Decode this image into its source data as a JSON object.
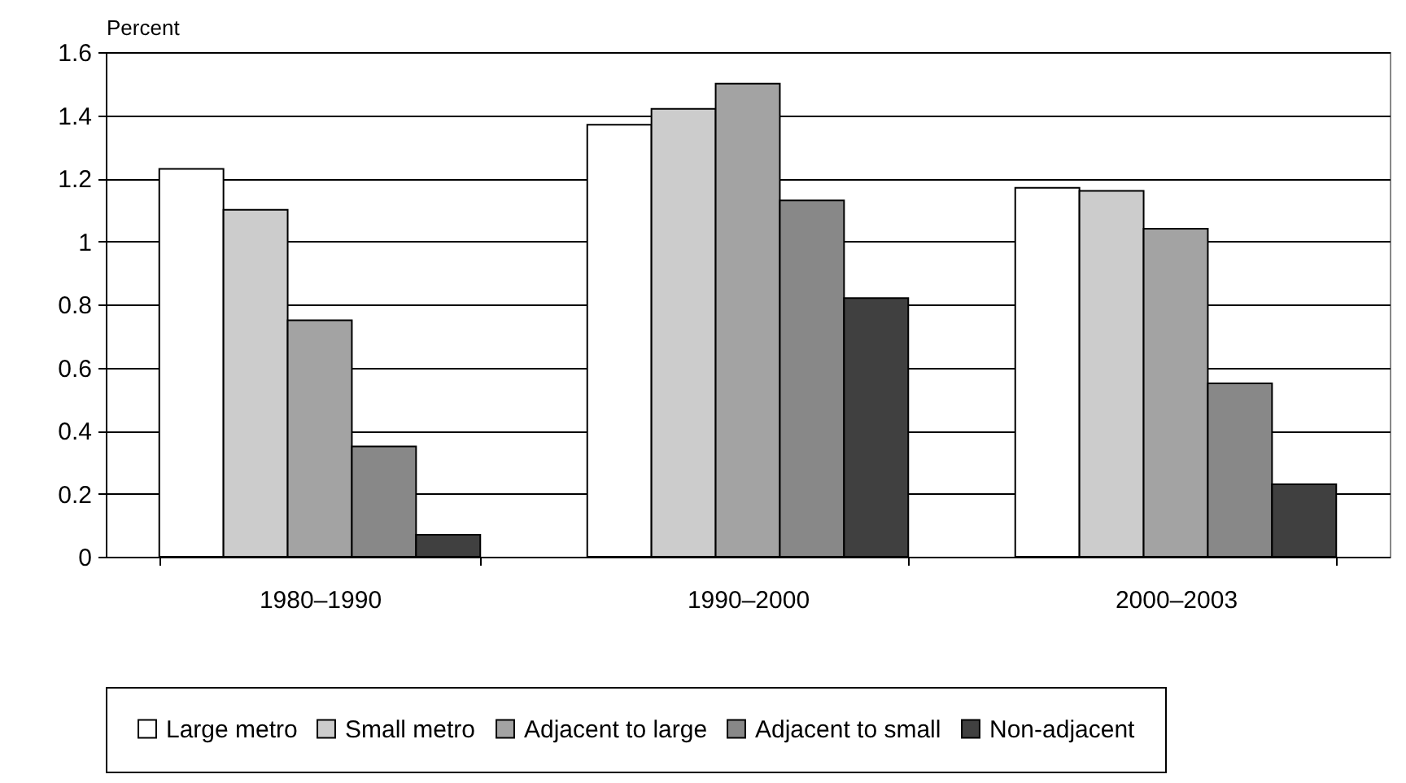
{
  "chart_data": {
    "type": "bar",
    "ylabel": "Percent",
    "categories": [
      "1980–1990",
      "1990–2000",
      "2000–2003"
    ],
    "series": [
      {
        "name": "Large metro",
        "color": "#ffffff",
        "values": [
          1.23,
          1.37,
          1.17
        ]
      },
      {
        "name": "Small metro",
        "color": "#cccccc",
        "values": [
          1.1,
          1.42,
          1.16
        ]
      },
      {
        "name": "Adjacent to large",
        "color": "#a3a3a3",
        "values": [
          0.75,
          1.5,
          1.04
        ]
      },
      {
        "name": "Adjacent to small",
        "color": "#888888",
        "values": [
          0.35,
          1.13,
          0.55
        ]
      },
      {
        "name": "Non-adjacent",
        "color": "#404040",
        "values": [
          0.07,
          0.82,
          0.23
        ]
      }
    ],
    "ylim": [
      0,
      1.6
    ],
    "yticks": [
      0,
      0.2,
      0.4,
      0.6,
      0.8,
      1,
      1.2,
      1.4,
      1.6
    ],
    "grid": "y",
    "legend": "bottom"
  }
}
